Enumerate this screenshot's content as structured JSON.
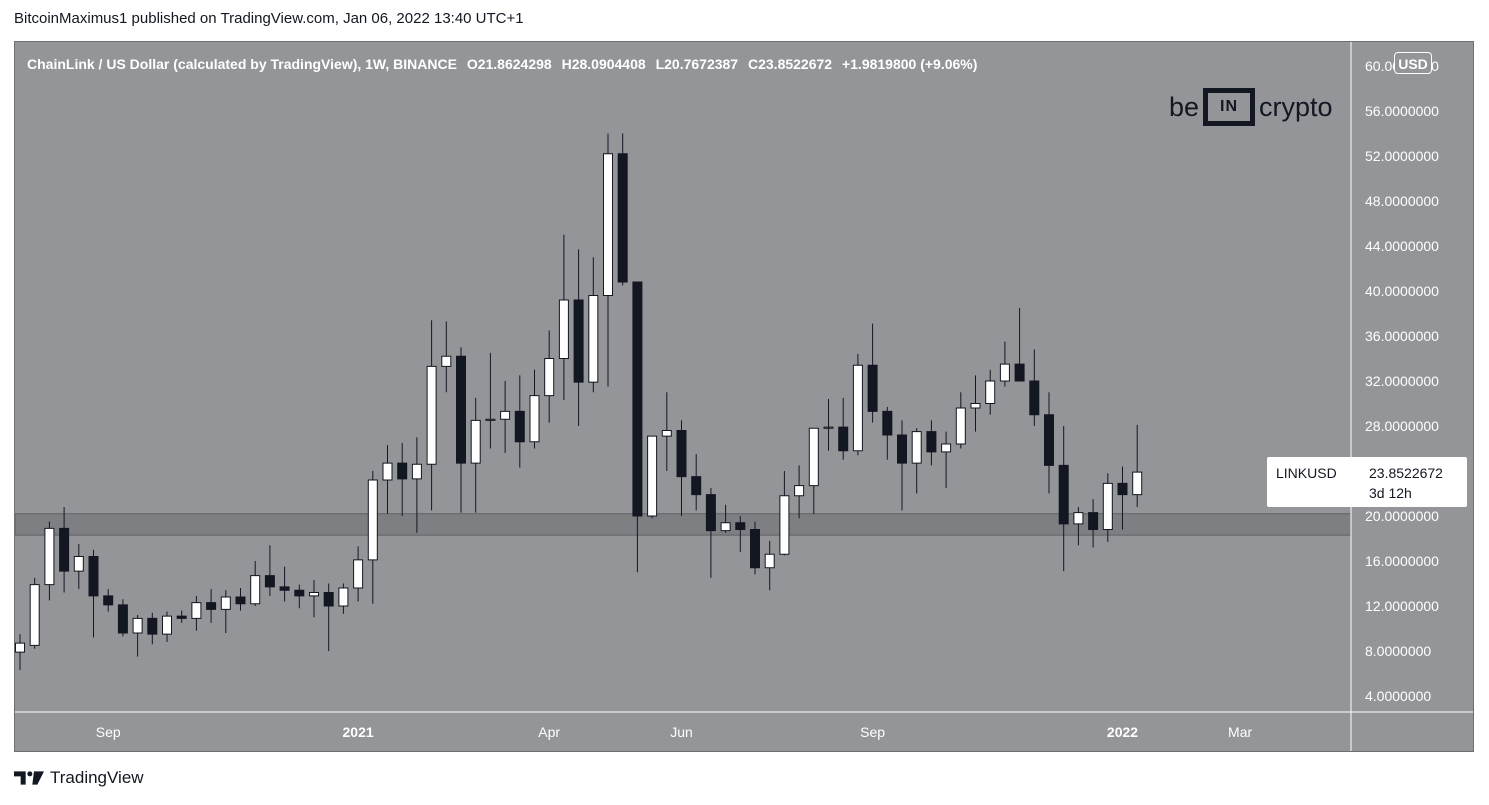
{
  "header": {
    "published": "BitcoinMaximus1 published on TradingView.com, Jan 06, 2022 13:40 UTC+1"
  },
  "legend": {
    "symbol": "ChainLink / US Dollar (calculated by TradingView), 1W, BINANCE",
    "o_label": "O",
    "o_value": "21.8624298",
    "h_label": "H",
    "h_value": "28.0904408",
    "l_label": "L",
    "l_value": "20.7672387",
    "c_label": "C",
    "c_value": "23.8522672",
    "change": "+1.9819800 (+9.06%)"
  },
  "currency_badge": "USD",
  "logo": {
    "left": "be",
    "box": "IN",
    "right": "crypto"
  },
  "last_price_tag": {
    "symbol": "LINKUSD",
    "price": "23.8522672",
    "countdown": "3d 12h"
  },
  "footer": {
    "brand": "TradingView"
  },
  "colors": {
    "background": "#939598",
    "bull_body": "#ffffff",
    "bear_body": "#131722",
    "wick": "#131722",
    "support_zone": "#7d7f83",
    "axis_text": "#ffffff"
  },
  "chart_data": {
    "type": "candlestick",
    "interval": "1W",
    "y_range": [
      2,
      62
    ],
    "y_ticks": [
      {
        "value": 4,
        "label": "4.0000000"
      },
      {
        "value": 8,
        "label": "8.0000000"
      },
      {
        "value": 12,
        "label": "12.0000000"
      },
      {
        "value": 16,
        "label": "16.0000000"
      },
      {
        "value": 20,
        "label": "20.0000000"
      },
      {
        "value": 24,
        "label": "24.0000000"
      },
      {
        "value": 28,
        "label": "28.0000000"
      },
      {
        "value": 32,
        "label": "32.0000000"
      },
      {
        "value": 36,
        "label": "36.0000000"
      },
      {
        "value": 40,
        "label": "40.0000000"
      },
      {
        "value": 44,
        "label": "44.0000000"
      },
      {
        "value": 48,
        "label": "48.0000000"
      },
      {
        "value": 52,
        "label": "52.0000000"
      },
      {
        "value": 56,
        "label": "56.0000000"
      },
      {
        "value": 60,
        "label": "60.0000000"
      }
    ],
    "x_ticks": [
      {
        "index": 6,
        "label": "Sep"
      },
      {
        "index": 23,
        "label": "2021"
      },
      {
        "index": 36,
        "label": "Apr"
      },
      {
        "index": 45,
        "label": "Jun"
      },
      {
        "index": 58,
        "label": "Sep"
      },
      {
        "index": 75,
        "label": "2022"
      },
      {
        "index": 83,
        "label": "Mar"
      }
    ],
    "support_zone": [
      18.3,
      20.2
    ],
    "candles": [
      {
        "o": 7.9,
        "h": 9.5,
        "l": 6.3,
        "c": 8.7
      },
      {
        "o": 8.5,
        "h": 14.5,
        "l": 8.2,
        "c": 13.9
      },
      {
        "o": 13.9,
        "h": 19.5,
        "l": 12.5,
        "c": 18.9
      },
      {
        "o": 18.9,
        "h": 20.8,
        "l": 13.2,
        "c": 15.1
      },
      {
        "o": 15.1,
        "h": 17.5,
        "l": 13.5,
        "c": 16.4
      },
      {
        "o": 16.4,
        "h": 17.0,
        "l": 9.2,
        "c": 12.9
      },
      {
        "o": 12.9,
        "h": 13.5,
        "l": 11.5,
        "c": 12.1
      },
      {
        "o": 12.1,
        "h": 12.6,
        "l": 9.3,
        "c": 9.6
      },
      {
        "o": 9.6,
        "h": 11.2,
        "l": 7.5,
        "c": 10.9
      },
      {
        "o": 10.9,
        "h": 11.4,
        "l": 8.6,
        "c": 9.5
      },
      {
        "o": 9.5,
        "h": 11.5,
        "l": 8.8,
        "c": 11.1
      },
      {
        "o": 11.1,
        "h": 11.6,
        "l": 10.5,
        "c": 10.9
      },
      {
        "o": 10.9,
        "h": 12.9,
        "l": 9.8,
        "c": 12.3
      },
      {
        "o": 12.3,
        "h": 13.5,
        "l": 10.5,
        "c": 11.7
      },
      {
        "o": 11.7,
        "h": 13.4,
        "l": 9.6,
        "c": 12.8
      },
      {
        "o": 12.8,
        "h": 13.6,
        "l": 11.6,
        "c": 12.2
      },
      {
        "o": 12.2,
        "h": 16.0,
        "l": 12.0,
        "c": 14.7
      },
      {
        "o": 14.7,
        "h": 17.4,
        "l": 12.9,
        "c": 13.7
      },
      {
        "o": 13.7,
        "h": 15.5,
        "l": 12.4,
        "c": 13.4
      },
      {
        "o": 13.4,
        "h": 13.9,
        "l": 11.8,
        "c": 12.9
      },
      {
        "o": 12.9,
        "h": 14.3,
        "l": 11.0,
        "c": 13.2
      },
      {
        "o": 13.2,
        "h": 14.0,
        "l": 8.0,
        "c": 12.0
      },
      {
        "o": 12.0,
        "h": 14.0,
        "l": 11.3,
        "c": 13.6
      },
      {
        "o": 13.6,
        "h": 17.3,
        "l": 12.4,
        "c": 16.1
      },
      {
        "o": 16.1,
        "h": 24.0,
        "l": 12.2,
        "c": 23.2
      },
      {
        "o": 23.2,
        "h": 26.3,
        "l": 20.2,
        "c": 24.7
      },
      {
        "o": 24.7,
        "h": 26.5,
        "l": 20.0,
        "c": 23.3
      },
      {
        "o": 23.3,
        "h": 27.0,
        "l": 18.5,
        "c": 24.6
      },
      {
        "o": 24.6,
        "h": 37.4,
        "l": 20.5,
        "c": 33.3
      },
      {
        "o": 33.3,
        "h": 37.3,
        "l": 31.0,
        "c": 34.2
      },
      {
        "o": 34.2,
        "h": 35.0,
        "l": 20.3,
        "c": 24.7
      },
      {
        "o": 24.7,
        "h": 30.5,
        "l": 20.3,
        "c": 28.5
      },
      {
        "o": 28.5,
        "h": 34.5,
        "l": 26.0,
        "c": 28.6
      },
      {
        "o": 28.6,
        "h": 32.0,
        "l": 25.6,
        "c": 29.3
      },
      {
        "o": 29.3,
        "h": 32.5,
        "l": 24.3,
        "c": 26.6
      },
      {
        "o": 26.6,
        "h": 33.0,
        "l": 26.0,
        "c": 30.7
      },
      {
        "o": 30.7,
        "h": 36.5,
        "l": 28.3,
        "c": 34.0
      },
      {
        "o": 34.0,
        "h": 45.0,
        "l": 30.3,
        "c": 39.2
      },
      {
        "o": 39.2,
        "h": 43.7,
        "l": 28.0,
        "c": 31.9
      },
      {
        "o": 31.9,
        "h": 43.0,
        "l": 31.0,
        "c": 39.6
      },
      {
        "o": 39.6,
        "h": 54.0,
        "l": 31.5,
        "c": 52.2
      },
      {
        "o": 52.2,
        "h": 54.0,
        "l": 40.5,
        "c": 40.8
      },
      {
        "o": 40.8,
        "h": 40.8,
        "l": 15.0,
        "c": 20.0
      },
      {
        "o": 20.0,
        "h": 27.0,
        "l": 19.8,
        "c": 27.1
      },
      {
        "o": 27.1,
        "h": 31.0,
        "l": 24.0,
        "c": 27.6
      },
      {
        "o": 27.6,
        "h": 28.5,
        "l": 20.0,
        "c": 23.5
      },
      {
        "o": 23.5,
        "h": 25.5,
        "l": 20.5,
        "c": 21.9
      },
      {
        "o": 21.9,
        "h": 22.5,
        "l": 14.5,
        "c": 18.7
      },
      {
        "o": 18.7,
        "h": 21.0,
        "l": 18.5,
        "c": 19.4
      },
      {
        "o": 19.4,
        "h": 20.0,
        "l": 16.8,
        "c": 18.8
      },
      {
        "o": 18.8,
        "h": 19.5,
        "l": 14.8,
        "c": 15.4
      },
      {
        "o": 15.4,
        "h": 17.8,
        "l": 13.4,
        "c": 16.6
      },
      {
        "o": 16.6,
        "h": 24.0,
        "l": 16.5,
        "c": 21.8
      },
      {
        "o": 21.8,
        "h": 24.5,
        "l": 19.8,
        "c": 22.7
      },
      {
        "o": 22.7,
        "h": 27.5,
        "l": 20.2,
        "c": 27.8
      },
      {
        "o": 27.8,
        "h": 30.4,
        "l": 25.8,
        "c": 27.9
      },
      {
        "o": 27.9,
        "h": 30.5,
        "l": 25.0,
        "c": 25.8
      },
      {
        "o": 25.8,
        "h": 34.4,
        "l": 25.4,
        "c": 33.4
      },
      {
        "o": 33.4,
        "h": 37.1,
        "l": 28.3,
        "c": 29.3
      },
      {
        "o": 29.3,
        "h": 29.7,
        "l": 25.0,
        "c": 27.2
      },
      {
        "o": 27.2,
        "h": 28.5,
        "l": 20.5,
        "c": 24.7
      },
      {
        "o": 24.7,
        "h": 27.8,
        "l": 22.0,
        "c": 27.5
      },
      {
        "o": 27.5,
        "h": 28.5,
        "l": 24.5,
        "c": 25.7
      },
      {
        "o": 25.7,
        "h": 27.5,
        "l": 22.5,
        "c": 26.4
      },
      {
        "o": 26.4,
        "h": 31.0,
        "l": 26.0,
        "c": 29.6
      },
      {
        "o": 29.6,
        "h": 32.5,
        "l": 27.5,
        "c": 30.0
      },
      {
        "o": 30.0,
        "h": 33.0,
        "l": 29.0,
        "c": 32.0
      },
      {
        "o": 32.0,
        "h": 35.5,
        "l": 31.5,
        "c": 33.5
      },
      {
        "o": 33.5,
        "h": 38.5,
        "l": 32.0,
        "c": 32.0
      },
      {
        "o": 32.0,
        "h": 34.8,
        "l": 28.0,
        "c": 29.0
      },
      {
        "o": 29.0,
        "h": 31.0,
        "l": 22.0,
        "c": 24.5
      },
      {
        "o": 24.5,
        "h": 28.0,
        "l": 15.1,
        "c": 19.3
      },
      {
        "o": 19.3,
        "h": 20.8,
        "l": 17.4,
        "c": 20.3
      },
      {
        "o": 20.3,
        "h": 21.5,
        "l": 17.2,
        "c": 18.8
      },
      {
        "o": 18.8,
        "h": 23.8,
        "l": 17.7,
        "c": 22.9
      },
      {
        "o": 22.9,
        "h": 24.4,
        "l": 18.8,
        "c": 21.9
      },
      {
        "o": 21.9,
        "h": 28.1,
        "l": 20.8,
        "c": 23.9
      }
    ]
  }
}
